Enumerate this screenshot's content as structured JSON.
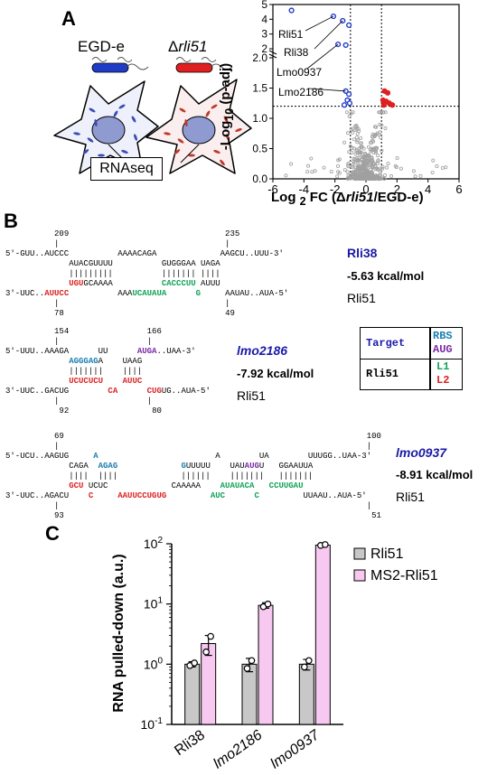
{
  "panels": {
    "a": "A",
    "b": "B",
    "c": "C"
  },
  "panel_a": {
    "cell_left_label": "EGD-e",
    "cell_right_label_prefix": "Δ",
    "cell_right_label_gene": "rli51",
    "rnaseq_label": "RNAseq",
    "colors": {
      "cytoplasm_blue": "#3a4bb5",
      "cytoplasm_red": "#c0392b",
      "bacterium_blue": "#1f3cc7",
      "bacterium_red": "#e02020",
      "nucleus": "#8f9ad0"
    }
  },
  "volcano": {
    "ylabel": "-Log10 (p-adj)",
    "xlabel": "Log 2 FC (Δrli51/EGD-e)",
    "xticks": [
      "-6",
      "-4",
      "-2",
      "0",
      "2",
      "4",
      "6"
    ],
    "yticks_upper": [
      "2",
      "3",
      "4",
      "5"
    ],
    "yticks_lower": [
      "0.0",
      "0.5",
      "1.0",
      "1.5",
      "2.0"
    ],
    "annotations": [
      "Rli51",
      "Rli38",
      "Lmo0937",
      "Lmo2186"
    ],
    "colors": {
      "down": "#1f3cc7",
      "up": "#e02020",
      "ns": "#a0a0a0"
    }
  },
  "panel_b": {
    "rli38": {
      "name": "Rli38",
      "energy": "-5.63 kcal/mol",
      "partner": "Rli51",
      "pos_top_left": "209",
      "pos_top_right": "235",
      "pos_bottom_left": "78",
      "pos_bottom_right": "49",
      "line1": "5'-GUU..AUCCC          AAAACAGA             AAGCU..UUU-3'",
      "line2": "             AUACGUUUU          GUGGGAA UAGA",
      "line3": "             |||||||||          ||||||| ||||",
      "line4_a": "             ",
      "line4_red": "UGU",
      "line4_b": "GCAAAA          ",
      "line4_green": "CACCCUU",
      "line4_c": " AUUU",
      "line5_a": "3'-UUC..",
      "line5_red": "AUUCC",
      "line5_b": "          AAA",
      "line5_green": "UCAUAUA",
      "line5_c": "      ",
      "line5_green2": "G",
      "line5_d": "     AAUAU..AUA-5'"
    },
    "lmo2186": {
      "name": "lmo2186",
      "energy": "-7.92 kcal/mol",
      "partner": "Rli51",
      "pos_top_left": "154",
      "pos_top_right": "166",
      "pos_bottom_left": "92",
      "pos_bottom_right": "80"
    },
    "lmo0937": {
      "name": "lmo0937",
      "energy": "-8.91 kcal/mol",
      "partner": "Rli51",
      "pos_top_left": "69",
      "pos_top_right": "100",
      "pos_bottom_left": "93",
      "pos_bottom_right": "51"
    },
    "legend": {
      "target": "Target",
      "rbs": "RBS",
      "aug": "AUG",
      "rli51": "Rli51",
      "l1": "L1",
      "l2": "L2"
    }
  },
  "chart_data": {
    "type": "bar",
    "ylabel": "RNA pulled-down (a.u.)",
    "yscale": "log",
    "ylim": [
      0.1,
      100
    ],
    "yticks": [
      "10-1",
      "100",
      "101",
      "102"
    ],
    "categories": [
      "Rli38",
      "lmo2186",
      "lmo0937"
    ],
    "series": [
      {
        "name": "Rli51",
        "values": [
          1.0,
          1.0,
          1.0
        ],
        "color": "#c8c8c8",
        "errors": [
          0.1,
          0.25,
          0.2
        ],
        "points": [
          [
            0.95,
            1.05
          ],
          [
            0.85,
            1.15
          ],
          [
            0.9,
            1.15
          ]
        ]
      },
      {
        "name": "MS2-Rli51",
        "values": [
          2.2,
          9.5,
          95
        ],
        "color": "#f7c8f0",
        "errors": [
          0.8,
          1.0,
          6
        ],
        "points": [
          [
            1.6,
            2.9
          ],
          [
            9.0,
            10.0
          ],
          [
            94,
            97
          ]
        ]
      }
    ],
    "legend_position": "top-right"
  }
}
